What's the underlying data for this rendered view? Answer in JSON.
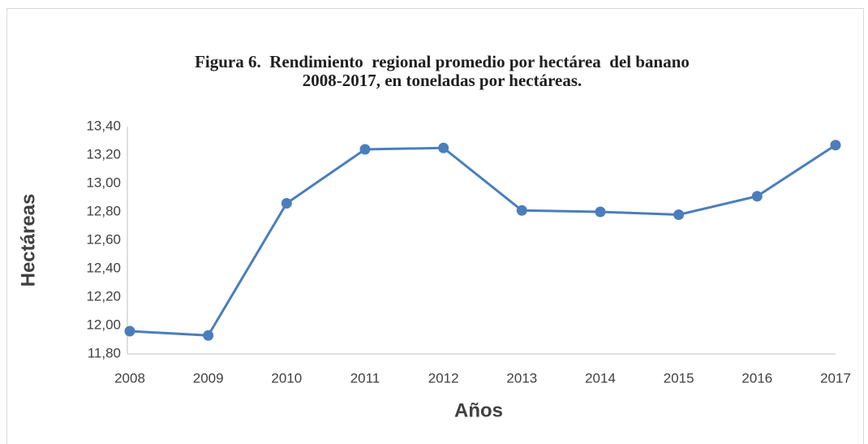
{
  "chart_data": {
    "type": "line",
    "title": [
      "Figura 6.  Rendimiento  regional promedio por hectárea  del banano",
      "2008-2017, en toneladas por hectáreas."
    ],
    "x_label": "Años",
    "y_label": "Hectáreas",
    "categories": [
      "2008",
      "2009",
      "2010",
      "2011",
      "2012",
      "2013",
      "2014",
      "2015",
      "2016",
      "2017"
    ],
    "values": [
      11.96,
      11.93,
      12.86,
      13.24,
      13.25,
      12.81,
      12.8,
      12.78,
      12.91,
      13.27
    ],
    "color": "#4a7ebb",
    "ylim": [
      11.8,
      13.4
    ],
    "yticks": [
      {
        "value": 11.8,
        "label": "11,80"
      },
      {
        "value": 12.0,
        "label": "12,00"
      },
      {
        "value": 12.2,
        "label": "12,20"
      },
      {
        "value": 12.4,
        "label": "12,40"
      },
      {
        "value": 12.6,
        "label": "12,60"
      },
      {
        "value": 12.8,
        "label": "12,80"
      },
      {
        "value": 13.0,
        "label": "13,00"
      },
      {
        "value": 13.2,
        "label": "13,20"
      },
      {
        "value": 13.4,
        "label": "13,40"
      }
    ],
    "grid": false
  }
}
